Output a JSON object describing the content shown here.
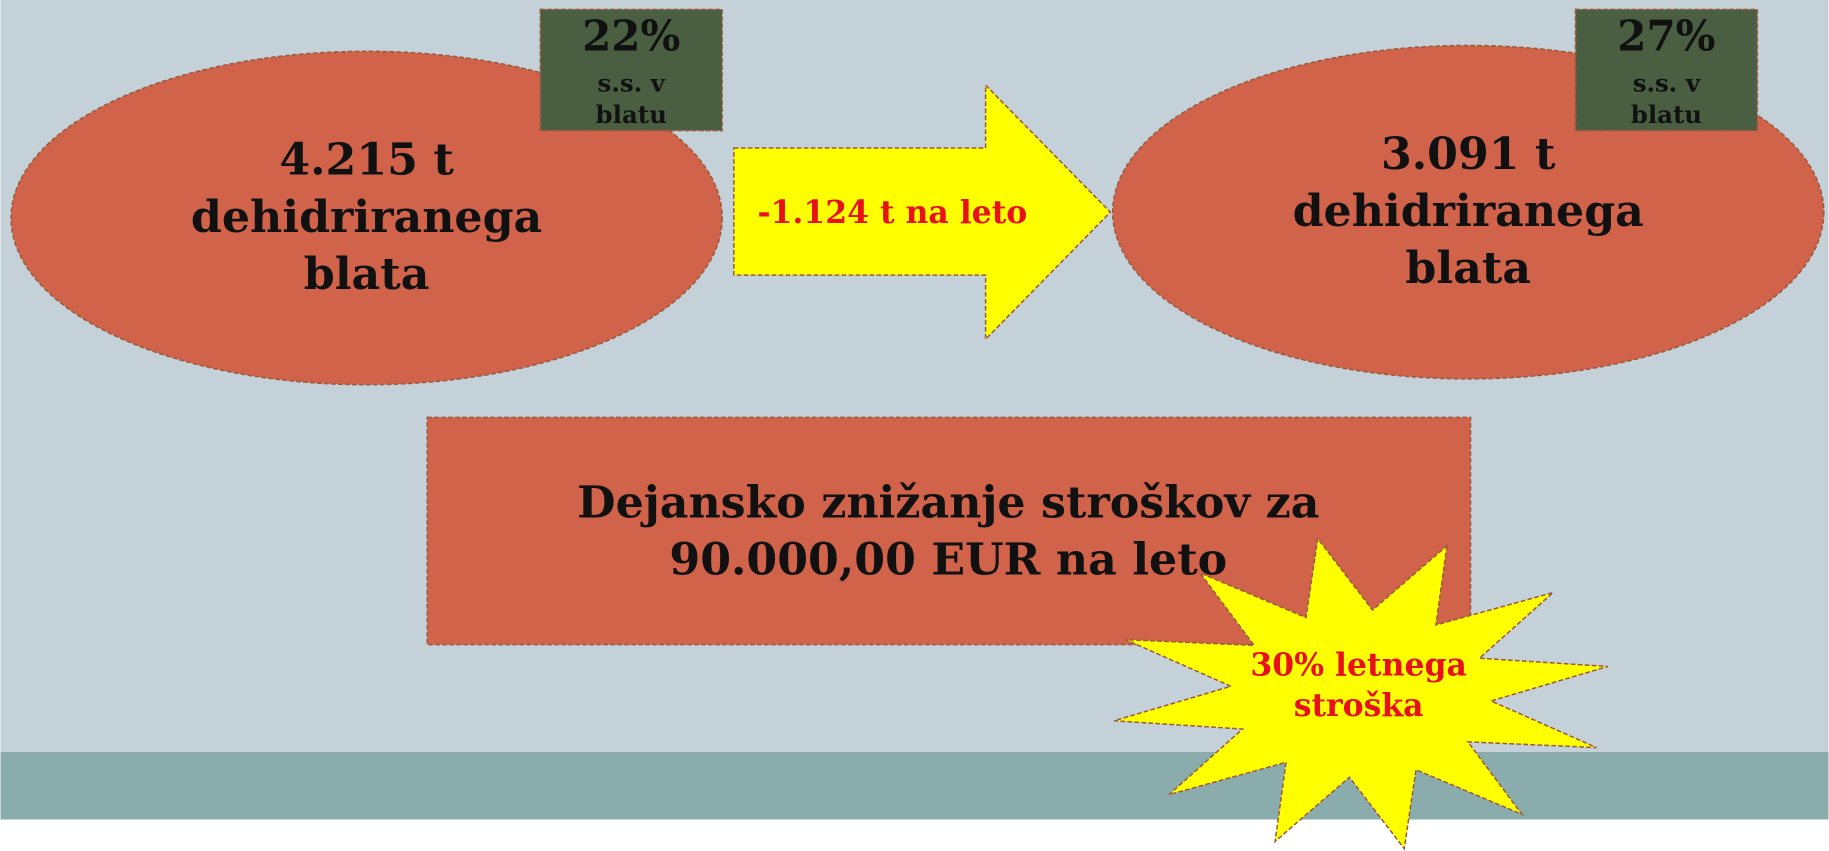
{
  "left": {
    "lines": [
      "4.215 t",
      "dehidriranega",
      "blata"
    ],
    "badge": {
      "percent": "22%",
      "lines": [
        "s.s. v",
        "blatu"
      ]
    }
  },
  "arrow": {
    "label": "-1.124 t na leto"
  },
  "right": {
    "lines": [
      "3.091 t",
      "dehidriranega",
      "blata"
    ],
    "badge": {
      "percent": "27%",
      "lines": [
        "s.s. v",
        "blatu"
      ]
    }
  },
  "box": {
    "lines": [
      "Dejansko znižanje stroškov za",
      "90.000,00 EUR na leto"
    ]
  },
  "star": {
    "lines": [
      "30% letnega",
      "stroška"
    ]
  }
}
